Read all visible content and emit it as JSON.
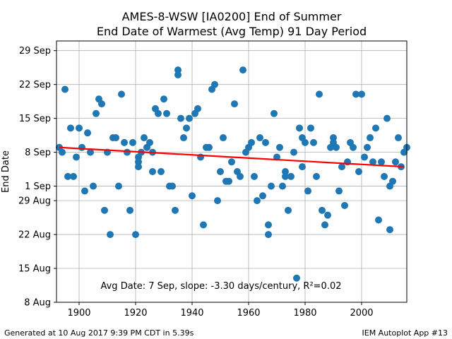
{
  "chart_data": {
    "type": "scatter",
    "title": [
      "AMES-8-WSW [IA0200] End of Summer",
      "End Date of Warmest (Avg Temp) 91 Day Period"
    ],
    "xlabel": "",
    "ylabel": "End Date",
    "xlim": [
      1892,
      2016
    ],
    "ylim": [
      "8 Aug",
      "1 Oct"
    ],
    "x_ticks": [
      1900,
      1920,
      1940,
      1960,
      1980,
      2000
    ],
    "y_ticks": [
      "8 Aug",
      "15 Aug",
      "22 Aug",
      "29 Aug",
      "1 Sep",
      "8 Sep",
      "15 Sep",
      "22 Sep",
      "29 Sep"
    ],
    "grid": true,
    "marker_color": "#1f77b4",
    "trend_color": "#ff0000",
    "trend_line": {
      "x": [
        1893,
        2015
      ],
      "y": [
        "9 Sep",
        "5 Sep"
      ]
    },
    "annotation": "Avg Date: 7 Sep, slope: -3.30 days/century, R²=0.02",
    "points": [
      {
        "x": 1893,
        "y": "9 Sep"
      },
      {
        "x": 1894,
        "y": "8 Sep"
      },
      {
        "x": 1895,
        "y": "21 Sep"
      },
      {
        "x": 1896,
        "y": "3 Sep"
      },
      {
        "x": 1897,
        "y": "13 Sep"
      },
      {
        "x": 1898,
        "y": "3 Sep"
      },
      {
        "x": 1899,
        "y": "7 Sep"
      },
      {
        "x": 1900,
        "y": "13 Sep"
      },
      {
        "x": 1901,
        "y": "9 Sep"
      },
      {
        "x": 1902,
        "y": "31 Aug"
      },
      {
        "x": 1903,
        "y": "12 Sep"
      },
      {
        "x": 1904,
        "y": "8 Sep"
      },
      {
        "x": 1905,
        "y": "1 Sep"
      },
      {
        "x": 1906,
        "y": "16 Sep"
      },
      {
        "x": 1907,
        "y": "19 Sep"
      },
      {
        "x": 1908,
        "y": "18 Sep"
      },
      {
        "x": 1909,
        "y": "27 Aug"
      },
      {
        "x": 1910,
        "y": "8 Sep"
      },
      {
        "x": 1911,
        "y": "22 Aug"
      },
      {
        "x": 1912,
        "y": "11 Sep"
      },
      {
        "x": 1913,
        "y": "11 Sep"
      },
      {
        "x": 1914,
        "y": "1 Sep"
      },
      {
        "x": 1915,
        "y": "20 Sep"
      },
      {
        "x": 1916,
        "y": "10 Sep"
      },
      {
        "x": 1917,
        "y": "8 Sep"
      },
      {
        "x": 1918,
        "y": "27 Aug"
      },
      {
        "x": 1919,
        "y": "10 Sep"
      },
      {
        "x": 1920,
        "y": "22 Aug"
      },
      {
        "x": 1921,
        "y": "7 Sep"
      },
      {
        "x": 1921,
        "y": "6 Sep"
      },
      {
        "x": 1921,
        "y": "5 Sep"
      },
      {
        "x": 1922,
        "y": "8 Sep"
      },
      {
        "x": 1923,
        "y": "11 Sep"
      },
      {
        "x": 1924,
        "y": "9 Sep"
      },
      {
        "x": 1925,
        "y": "10 Sep"
      },
      {
        "x": 1926,
        "y": "8 Sep"
      },
      {
        "x": 1926,
        "y": "4 Sep"
      },
      {
        "x": 1927,
        "y": "17 Sep"
      },
      {
        "x": 1928,
        "y": "16 Sep"
      },
      {
        "x": 1929,
        "y": "4 Sep"
      },
      {
        "x": 1930,
        "y": "19 Sep"
      },
      {
        "x": 1931,
        "y": "16 Sep"
      },
      {
        "x": 1932,
        "y": "1 Sep"
      },
      {
        "x": 1933,
        "y": "1 Sep"
      },
      {
        "x": 1934,
        "y": "27 Aug"
      },
      {
        "x": 1935,
        "y": "25 Sep"
      },
      {
        "x": 1935,
        "y": "24 Sep"
      },
      {
        "x": 1936,
        "y": "15 Sep"
      },
      {
        "x": 1937,
        "y": "11 Sep"
      },
      {
        "x": 1938,
        "y": "13 Sep"
      },
      {
        "x": 1939,
        "y": "15 Sep"
      },
      {
        "x": 1940,
        "y": "30 Aug"
      },
      {
        "x": 1941,
        "y": "16 Sep"
      },
      {
        "x": 1942,
        "y": "17 Sep"
      },
      {
        "x": 1943,
        "y": "7 Sep"
      },
      {
        "x": 1944,
        "y": "24 Aug"
      },
      {
        "x": 1945,
        "y": "9 Sep"
      },
      {
        "x": 1946,
        "y": "9 Sep"
      },
      {
        "x": 1947,
        "y": "21 Sep"
      },
      {
        "x": 1948,
        "y": "22 Sep"
      },
      {
        "x": 1949,
        "y": "29 Aug"
      },
      {
        "x": 1950,
        "y": "4 Sep"
      },
      {
        "x": 1951,
        "y": "11 Sep"
      },
      {
        "x": 1952,
        "y": "2 Sep"
      },
      {
        "x": 1953,
        "y": "2 Sep"
      },
      {
        "x": 1954,
        "y": "6 Sep"
      },
      {
        "x": 1955,
        "y": "18 Sep"
      },
      {
        "x": 1956,
        "y": "4 Sep"
      },
      {
        "x": 1957,
        "y": "3 Sep"
      },
      {
        "x": 1958,
        "y": "25 Sep"
      },
      {
        "x": 1959,
        "y": "8 Sep"
      },
      {
        "x": 1960,
        "y": "9 Sep"
      },
      {
        "x": 1961,
        "y": "10 Sep"
      },
      {
        "x": 1962,
        "y": "3 Sep"
      },
      {
        "x": 1963,
        "y": "29 Aug"
      },
      {
        "x": 1964,
        "y": "11 Sep"
      },
      {
        "x": 1965,
        "y": "30 Aug"
      },
      {
        "x": 1966,
        "y": "10 Sep"
      },
      {
        "x": 1967,
        "y": "24 Aug"
      },
      {
        "x": 1967,
        "y": "22 Aug"
      },
      {
        "x": 1968,
        "y": "1 Sep"
      },
      {
        "x": 1969,
        "y": "16 Sep"
      },
      {
        "x": 1970,
        "y": "7 Sep"
      },
      {
        "x": 1971,
        "y": "9 Sep"
      },
      {
        "x": 1972,
        "y": "1 Sep"
      },
      {
        "x": 1973,
        "y": "4 Sep"
      },
      {
        "x": 1973,
        "y": "3 Sep"
      },
      {
        "x": 1974,
        "y": "27 Aug"
      },
      {
        "x": 1975,
        "y": "3 Sep"
      },
      {
        "x": 1976,
        "y": "8 Sep"
      },
      {
        "x": 1977,
        "y": "13 Aug"
      },
      {
        "x": 1978,
        "y": "13 Sep"
      },
      {
        "x": 1979,
        "y": "11 Sep"
      },
      {
        "x": 1979,
        "y": "5 Sep"
      },
      {
        "x": 1980,
        "y": "10 Sep"
      },
      {
        "x": 1981,
        "y": "31 Aug"
      },
      {
        "x": 1982,
        "y": "13 Sep"
      },
      {
        "x": 1983,
        "y": "10 Sep"
      },
      {
        "x": 1984,
        "y": "3 Sep"
      },
      {
        "x": 1985,
        "y": "20 Sep"
      },
      {
        "x": 1986,
        "y": "27 Aug"
      },
      {
        "x": 1987,
        "y": "24 Aug"
      },
      {
        "x": 1988,
        "y": "26 Aug"
      },
      {
        "x": 1989,
        "y": "9 Sep"
      },
      {
        "x": 1990,
        "y": "11 Sep"
      },
      {
        "x": 1990,
        "y": "10 Sep"
      },
      {
        "x": 1991,
        "y": "9 Sep"
      },
      {
        "x": 1992,
        "y": "31 Aug"
      },
      {
        "x": 1993,
        "y": "5 Sep"
      },
      {
        "x": 1994,
        "y": "28 Aug"
      },
      {
        "x": 1995,
        "y": "6 Sep"
      },
      {
        "x": 1996,
        "y": "10 Sep"
      },
      {
        "x": 1997,
        "y": "9 Sep"
      },
      {
        "x": 1998,
        "y": "20 Sep"
      },
      {
        "x": 1999,
        "y": "4 Sep"
      },
      {
        "x": 2000,
        "y": "20 Sep"
      },
      {
        "x": 2001,
        "y": "7 Sep"
      },
      {
        "x": 2002,
        "y": "9 Sep"
      },
      {
        "x": 2003,
        "y": "11 Sep"
      },
      {
        "x": 2004,
        "y": "6 Sep"
      },
      {
        "x": 2005,
        "y": "13 Sep"
      },
      {
        "x": 2006,
        "y": "25 Aug"
      },
      {
        "x": 2007,
        "y": "6 Sep"
      },
      {
        "x": 2008,
        "y": "3 Sep"
      },
      {
        "x": 2009,
        "y": "15 Sep"
      },
      {
        "x": 2010,
        "y": "23 Aug"
      },
      {
        "x": 2010,
        "y": "1 Sep"
      },
      {
        "x": 2011,
        "y": "2 Sep"
      },
      {
        "x": 2012,
        "y": "6 Sep"
      },
      {
        "x": 2013,
        "y": "11 Sep"
      },
      {
        "x": 2014,
        "y": "5 Sep"
      },
      {
        "x": 2015,
        "y": "8 Sep"
      },
      {
        "x": 2016,
        "y": "9 Sep"
      }
    ]
  },
  "footer": {
    "left": "Generated at 10 Aug 2017 9:39 PM CDT in 5.39s",
    "right": "IEM Autoplot App #13"
  }
}
